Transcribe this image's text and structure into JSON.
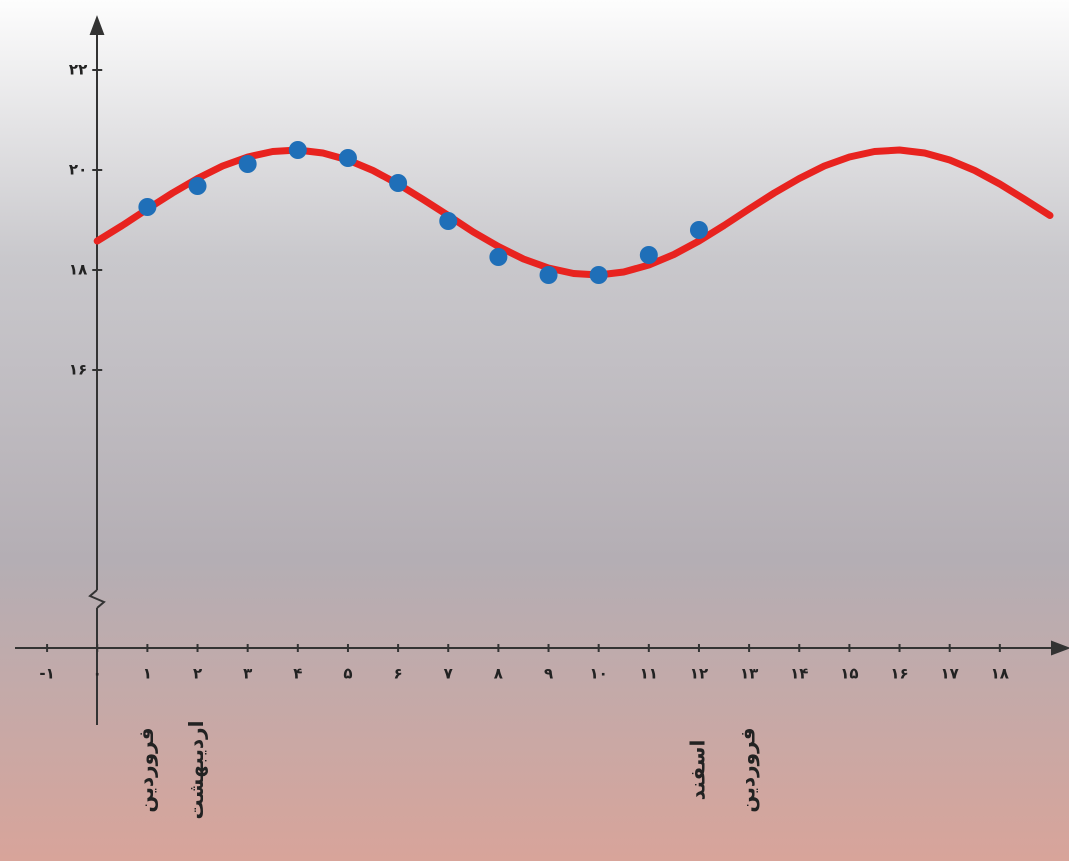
{
  "chart_data": {
    "type": "scatter",
    "x": [
      1,
      2,
      3,
      4,
      5,
      6,
      7,
      8,
      9,
      10,
      11,
      12
    ],
    "values": [
      19.26,
      19.68,
      20.12,
      20.4,
      20.24,
      19.74,
      18.98,
      18.26,
      17.9,
      17.9,
      18.3,
      18.8
    ],
    "color": "#1f6fb8",
    "curve": {
      "color": "#e8231f",
      "x": [
        0,
        0.5,
        1,
        1.5,
        2,
        2.5,
        3,
        3.5,
        4,
        4.5,
        5,
        5.5,
        6,
        6.5,
        7,
        7.5,
        8,
        8.5,
        9,
        9.5,
        10,
        10.5,
        11,
        11.5,
        12,
        12.5,
        13,
        13.5,
        14,
        14.5,
        15,
        15.5,
        16,
        16.5,
        17,
        17.5,
        18,
        18.5,
        19
      ],
      "values": [
        18.58,
        18.89,
        19.22,
        19.54,
        19.83,
        20.08,
        20.26,
        20.37,
        20.4,
        20.34,
        20.2,
        19.99,
        19.72,
        19.41,
        19.09,
        18.76,
        18.47,
        18.22,
        18.04,
        17.93,
        17.9,
        17.96,
        18.1,
        18.31,
        18.58,
        18.89,
        19.22,
        19.54,
        19.83,
        20.08,
        20.26,
        20.37,
        20.4,
        20.34,
        20.2,
        19.99,
        19.72,
        19.41,
        19.09
      ]
    },
    "xlim": [
      -1.64,
      19.2
    ],
    "ylim": [
      10.44,
      22.9
    ],
    "xticks": [
      {
        "value": -1,
        "label": "-۱"
      },
      {
        "value": 0,
        "label": "۰"
      },
      {
        "value": 1,
        "label": "۱"
      },
      {
        "value": 2,
        "label": "۲"
      },
      {
        "value": 3,
        "label": "۳"
      },
      {
        "value": 4,
        "label": "۴"
      },
      {
        "value": 5,
        "label": "۵"
      },
      {
        "value": 6,
        "label": "۶"
      },
      {
        "value": 7,
        "label": "۷"
      },
      {
        "value": 8,
        "label": "۸"
      },
      {
        "value": 9,
        "label": "۹"
      },
      {
        "value": 10,
        "label": "۱۰"
      },
      {
        "value": 11,
        "label": "۱۱"
      },
      {
        "value": 12,
        "label": "۱۲"
      },
      {
        "value": 13,
        "label": "۱۳"
      },
      {
        "value": 14,
        "label": "۱۴"
      },
      {
        "value": 15,
        "label": "۱۵"
      },
      {
        "value": 16,
        "label": "۱۶"
      },
      {
        "value": 17,
        "label": "۱۷"
      },
      {
        "value": 18,
        "label": "۱۸"
      }
    ],
    "yticks": [
      {
        "value": 16,
        "label": "۱۶"
      },
      {
        "value": 18,
        "label": "۱۸"
      },
      {
        "value": 20,
        "label": "۲۰"
      },
      {
        "value": 22,
        "label": "۲۲"
      }
    ],
    "annotations": [
      {
        "x": 1,
        "text": "فروردین"
      },
      {
        "x": 2,
        "text": "اردیبهشت"
      },
      {
        "x": 12,
        "text": "اسفند"
      },
      {
        "x": 13,
        "text": "فروردین"
      }
    ]
  }
}
